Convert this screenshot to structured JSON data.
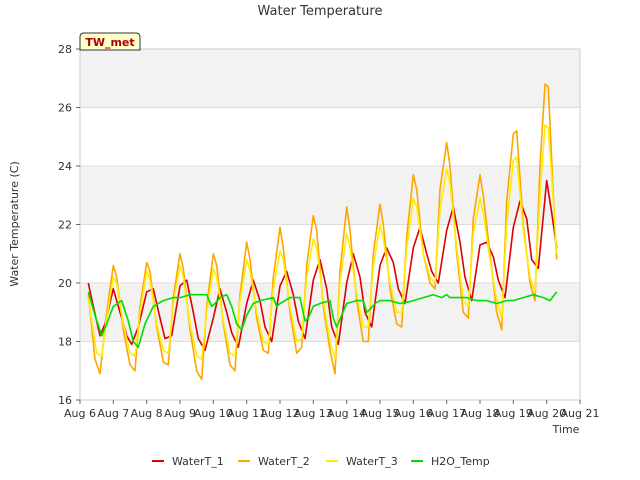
{
  "chart_data": {
    "type": "line",
    "title": "Water Temperature",
    "xlabel": "Time",
    "ylabel": "Water Temperature (C)",
    "site_label": "TW_met",
    "x_ticks": [
      "Aug 6",
      "Aug 7",
      "Aug 8",
      "Aug 9",
      "Aug 10",
      "Aug 11",
      "Aug 12",
      "Aug 13",
      "Aug 14",
      "Aug 15",
      "Aug 16",
      "Aug 17",
      "Aug 18",
      "Aug 19",
      "Aug 20",
      "Aug 21"
    ],
    "xlim": [
      0,
      15
    ],
    "ylim": [
      16,
      28
    ],
    "y_ticks": [
      16,
      18,
      20,
      22,
      24,
      26,
      28
    ],
    "grid": true,
    "legend_position": "bottom",
    "series": [
      {
        "name": "WaterT_1",
        "color": "#dd0000",
        "x": [
          0.25,
          0.4,
          0.6,
          0.75,
          1.0,
          1.2,
          1.4,
          1.55,
          1.75,
          2.0,
          2.2,
          2.4,
          2.55,
          2.75,
          3.0,
          3.2,
          3.4,
          3.55,
          3.75,
          4.0,
          4.2,
          4.4,
          4.55,
          4.75,
          5.0,
          5.2,
          5.4,
          5.55,
          5.75,
          6.0,
          6.2,
          6.4,
          6.55,
          6.75,
          7.0,
          7.2,
          7.4,
          7.55,
          7.75,
          8.0,
          8.2,
          8.4,
          8.55,
          8.75,
          9.0,
          9.2,
          9.4,
          9.55,
          9.75,
          10.0,
          10.2,
          10.4,
          10.55,
          10.75,
          11.0,
          11.2,
          11.4,
          11.55,
          11.75,
          12.0,
          12.2,
          12.4,
          12.55,
          12.75,
          13.0,
          13.2,
          13.4,
          13.55,
          13.75,
          14.0,
          14.15,
          14.3
        ],
        "y": [
          20.0,
          19.2,
          18.2,
          18.6,
          19.8,
          19.0,
          18.2,
          17.9,
          18.5,
          19.7,
          19.8,
          18.8,
          18.1,
          18.2,
          19.9,
          20.1,
          19.0,
          18.1,
          17.7,
          18.8,
          19.8,
          19.0,
          18.3,
          17.8,
          19.3,
          20.1,
          19.4,
          18.5,
          18.0,
          19.9,
          20.4,
          19.6,
          18.7,
          18.1,
          20.1,
          20.8,
          19.8,
          18.5,
          17.9,
          20.0,
          21.0,
          20.2,
          19.0,
          18.5,
          20.6,
          21.2,
          20.7,
          19.8,
          19.3,
          21.2,
          21.9,
          21.0,
          20.4,
          20.0,
          21.8,
          22.6,
          21.4,
          20.2,
          19.4,
          21.3,
          21.4,
          20.9,
          20.1,
          19.5,
          21.9,
          22.8,
          22.2,
          20.8,
          20.5,
          23.5,
          22.4,
          21.2
        ]
      },
      {
        "name": "WaterT_2",
        "color": "#ffa500",
        "x": [
          0.25,
          0.35,
          0.45,
          0.6,
          0.8,
          1.0,
          1.1,
          1.3,
          1.5,
          1.65,
          1.8,
          2.0,
          2.1,
          2.3,
          2.5,
          2.65,
          2.8,
          3.0,
          3.1,
          3.3,
          3.5,
          3.65,
          3.8,
          4.0,
          4.1,
          4.3,
          4.5,
          4.65,
          4.8,
          5.0,
          5.1,
          5.3,
          5.5,
          5.65,
          5.8,
          6.0,
          6.1,
          6.3,
          6.5,
          6.65,
          6.8,
          7.0,
          7.1,
          7.3,
          7.5,
          7.65,
          7.8,
          8.0,
          8.1,
          8.3,
          8.5,
          8.65,
          8.8,
          9.0,
          9.1,
          9.3,
          9.5,
          9.65,
          9.8,
          10.0,
          10.1,
          10.3,
          10.5,
          10.65,
          10.8,
          11.0,
          11.1,
          11.3,
          11.5,
          11.65,
          11.8,
          12.0,
          12.1,
          12.3,
          12.5,
          12.65,
          12.8,
          13.0,
          13.1,
          13.3,
          13.5,
          13.65,
          13.8,
          13.95,
          14.05,
          14.2,
          14.3
        ],
        "y": [
          19.6,
          18.5,
          17.4,
          16.9,
          19.0,
          20.6,
          20.2,
          18.4,
          17.2,
          17.0,
          19.2,
          20.7,
          20.4,
          18.5,
          17.3,
          17.2,
          19.5,
          21.0,
          20.5,
          18.4,
          17.0,
          16.7,
          19.2,
          21.0,
          20.6,
          18.6,
          17.2,
          17.0,
          19.6,
          21.4,
          20.8,
          18.8,
          17.7,
          17.6,
          20.2,
          21.9,
          21.2,
          19.0,
          17.6,
          17.8,
          20.6,
          22.3,
          21.8,
          19.2,
          17.7,
          16.9,
          20.4,
          22.6,
          21.8,
          19.4,
          18.0,
          18.0,
          21.0,
          22.7,
          22.0,
          19.8,
          18.6,
          18.5,
          21.6,
          23.7,
          23.2,
          21.0,
          20.0,
          19.8,
          23.2,
          24.8,
          24.0,
          21.0,
          19.0,
          18.8,
          22.2,
          23.7,
          23.0,
          21.0,
          19.0,
          18.4,
          22.8,
          25.1,
          25.2,
          22.0,
          20.0,
          19.4,
          24.0,
          26.8,
          26.7,
          23.0,
          20.8
        ]
      },
      {
        "name": "WaterT_3",
        "color": "#ffee00",
        "x": [
          0.25,
          0.35,
          0.5,
          0.65,
          0.8,
          1.0,
          1.1,
          1.3,
          1.5,
          1.65,
          1.8,
          2.0,
          2.1,
          2.3,
          2.5,
          2.65,
          2.8,
          3.0,
          3.1,
          3.3,
          3.5,
          3.65,
          3.8,
          4.0,
          4.1,
          4.3,
          4.5,
          4.65,
          4.8,
          5.0,
          5.1,
          5.3,
          5.5,
          5.65,
          5.8,
          6.0,
          6.1,
          6.3,
          6.5,
          6.65,
          6.8,
          7.0,
          7.1,
          7.3,
          7.5,
          7.65,
          7.8,
          8.0,
          8.1,
          8.3,
          8.5,
          8.65,
          8.8,
          9.0,
          9.1,
          9.3,
          9.5,
          9.65,
          9.8,
          10.0,
          10.1,
          10.3,
          10.5,
          10.65,
          10.8,
          11.0,
          11.1,
          11.3,
          11.5,
          11.65,
          11.8,
          12.0,
          12.1,
          12.3,
          12.5,
          12.65,
          12.8,
          13.0,
          13.1,
          13.3,
          13.5,
          13.65,
          13.8,
          13.95,
          14.05,
          14.2,
          14.3
        ],
        "y": [
          19.5,
          18.7,
          17.6,
          17.5,
          18.8,
          20.2,
          20.0,
          18.6,
          17.6,
          17.5,
          19.0,
          20.4,
          20.1,
          18.6,
          17.7,
          17.6,
          19.3,
          20.6,
          20.2,
          18.6,
          17.5,
          17.4,
          19.0,
          20.5,
          20.2,
          18.7,
          17.6,
          17.5,
          19.4,
          20.8,
          20.4,
          19.0,
          18.0,
          17.9,
          19.8,
          21.1,
          20.8,
          19.2,
          18.0,
          18.1,
          20.2,
          21.5,
          21.2,
          19.4,
          18.0,
          17.4,
          20.0,
          21.7,
          21.2,
          19.6,
          18.5,
          18.5,
          20.6,
          22.0,
          21.5,
          20.0,
          19.0,
          19.0,
          21.2,
          22.9,
          22.6,
          21.0,
          20.2,
          20.0,
          22.5,
          23.9,
          23.4,
          21.2,
          19.4,
          19.2,
          21.7,
          22.9,
          22.4,
          20.8,
          19.4,
          18.8,
          22.0,
          24.2,
          24.3,
          21.8,
          20.2,
          19.7,
          23.0,
          25.4,
          25.3,
          22.8,
          21.0
        ]
      },
      {
        "name": "H2O_Temp",
        "color": "#00dd00",
        "x": [
          0.25,
          0.45,
          0.65,
          0.8,
          1.0,
          1.25,
          1.45,
          1.6,
          1.75,
          1.95,
          2.2,
          2.5,
          2.8,
          3.0,
          3.3,
          3.6,
          3.8,
          3.95,
          4.05,
          4.2,
          4.4,
          4.55,
          4.7,
          4.85,
          5.0,
          5.2,
          5.4,
          5.6,
          5.8,
          5.9,
          6.0,
          6.3,
          6.6,
          6.75,
          6.85,
          7.0,
          7.2,
          7.5,
          7.6,
          7.7,
          7.85,
          8.0,
          8.3,
          8.5,
          8.6,
          8.7,
          8.85,
          9.0,
          9.3,
          9.6,
          9.85,
          10.0,
          10.3,
          10.6,
          10.85,
          11.0,
          11.1,
          11.3,
          11.6,
          11.9,
          12.2,
          12.5,
          12.8,
          13.0,
          13.3,
          13.6,
          13.9,
          14.1,
          14.3
        ],
        "y": [
          19.7,
          18.9,
          18.2,
          18.6,
          19.2,
          19.4,
          18.7,
          18.0,
          17.8,
          18.6,
          19.2,
          19.4,
          19.5,
          19.5,
          19.6,
          19.6,
          19.6,
          19.2,
          19.3,
          19.5,
          19.6,
          19.2,
          18.6,
          18.4,
          18.9,
          19.3,
          19.4,
          19.45,
          19.5,
          19.2,
          19.3,
          19.5,
          19.5,
          18.7,
          18.8,
          19.2,
          19.3,
          19.4,
          18.8,
          18.5,
          18.9,
          19.3,
          19.4,
          19.4,
          19.0,
          19.1,
          19.3,
          19.4,
          19.4,
          19.3,
          19.35,
          19.4,
          19.5,
          19.6,
          19.5,
          19.6,
          19.5,
          19.5,
          19.5,
          19.4,
          19.4,
          19.3,
          19.4,
          19.4,
          19.5,
          19.6,
          19.5,
          19.4,
          19.7
        ]
      }
    ]
  }
}
